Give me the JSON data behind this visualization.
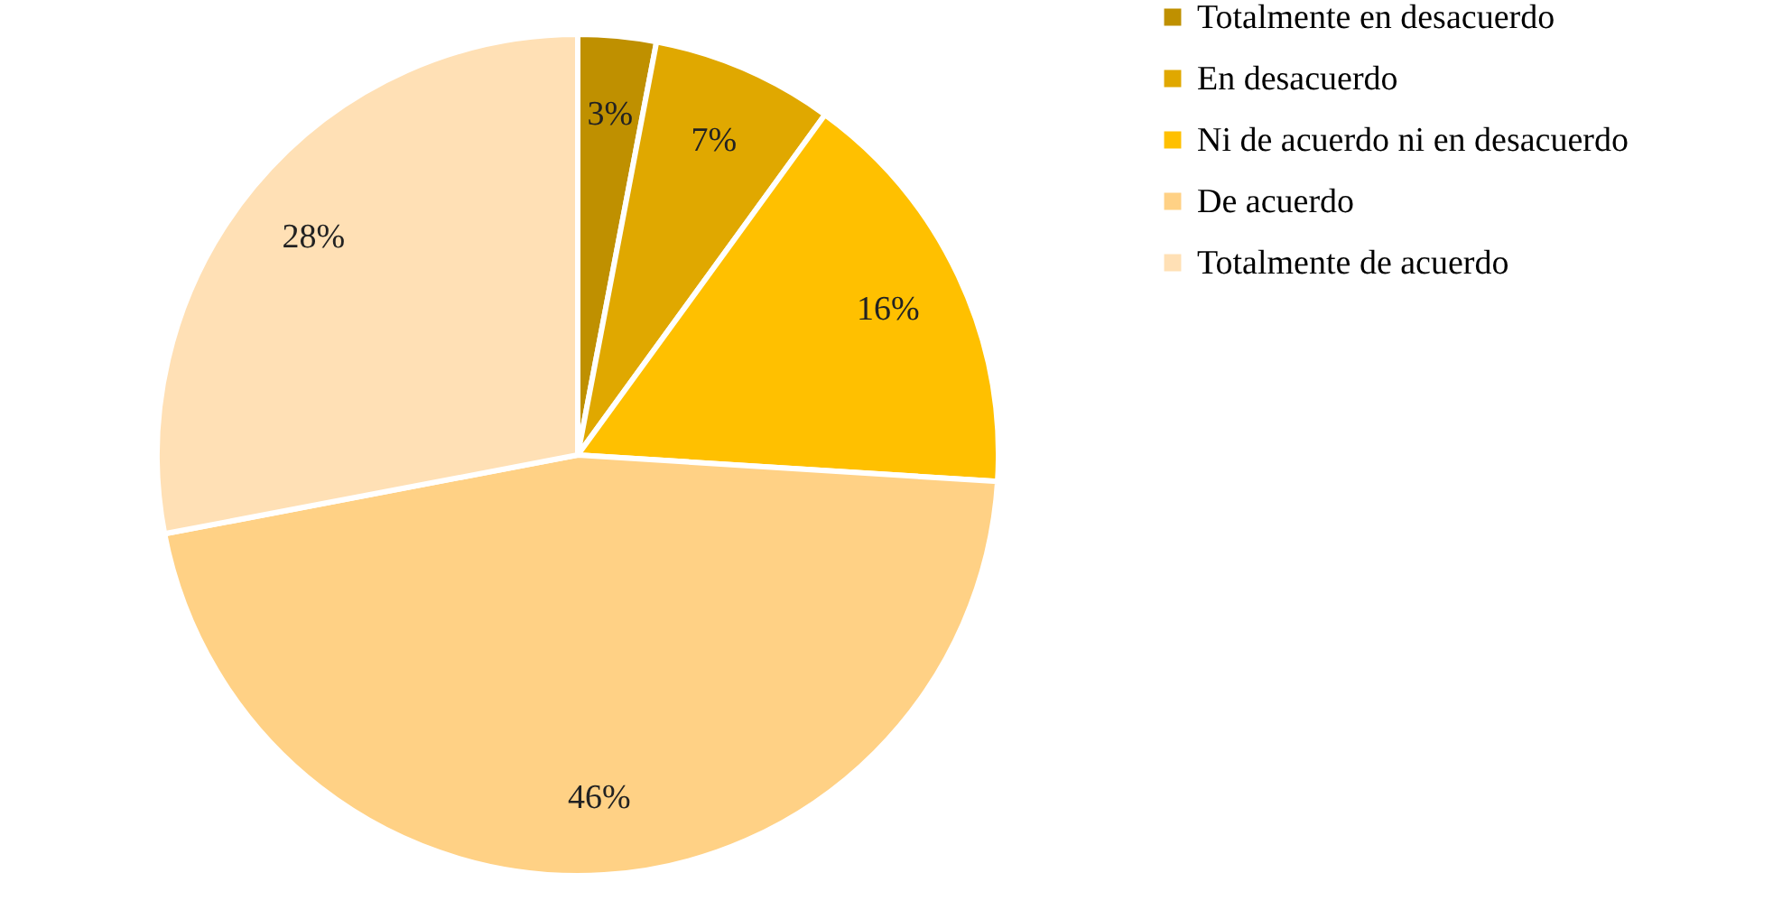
{
  "chart_data": {
    "type": "pie",
    "categories": [
      "Totalmente en desacuerdo",
      "En desacuerdo",
      "Ni de acuerdo ni en desacuerdo",
      "De acuerdo",
      "Totalmente de acuerdo"
    ],
    "values": [
      3,
      7,
      16,
      46,
      28
    ],
    "colors": [
      "#bf9000",
      "#e0a800",
      "#ffc000",
      "#ffd185",
      "#ffe0b5"
    ],
    "value_labels": [
      "3%",
      "7%",
      "16%",
      "46%",
      "28%"
    ],
    "legend": "right"
  }
}
